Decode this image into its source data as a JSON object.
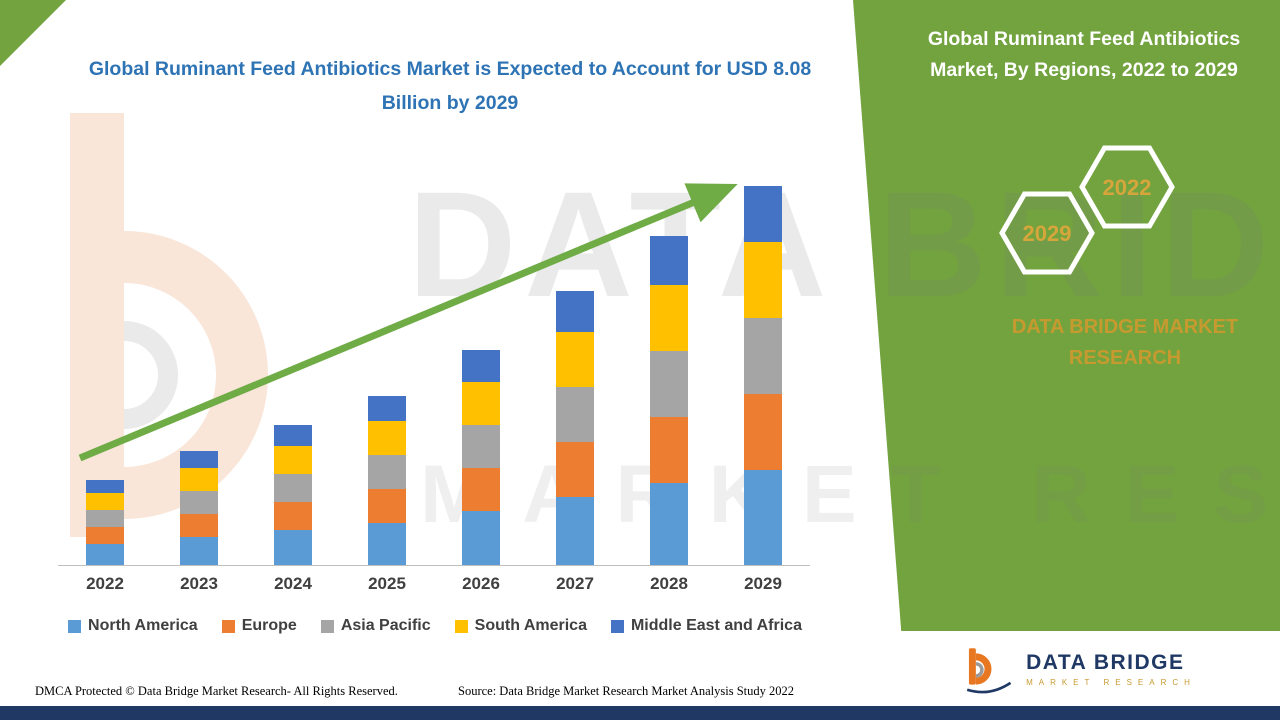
{
  "header": {
    "main_title": "Global Ruminant Feed Antibiotics Market is Expected to Account for USD 8.08 Billion by 2029",
    "panel_title": "Global Ruminant Feed Antibiotics Market, By Regions, 2022 to 2029"
  },
  "panel": {
    "hexagons": [
      "2029",
      "2022"
    ],
    "brand_text": "DATA BRIDGE MARKET RESEARCH",
    "green_color": "#72A33F",
    "gold_color": "#C79A2F"
  },
  "watermark": {
    "line1": "DATA BRIDGE",
    "line2": "MARKET RESEARCH"
  },
  "footer": {
    "dmca": "DMCA Protected © Data Bridge Market Research- All Rights Reserved.",
    "source": "Source: Data Bridge Market Research Market Analysis Study 2022",
    "logo_title": "DATA BRIDGE",
    "logo_subtitle": "MARKET RESEARCH"
  },
  "chart_data": {
    "type": "bar",
    "stacked": true,
    "title": "Global Ruminant Feed Antibiotics Market, By Regions, 2022 to 2029",
    "unit": "USD Billion",
    "categories": [
      "2022",
      "2023",
      "2024",
      "2025",
      "2026",
      "2027",
      "2028",
      "2029"
    ],
    "series": [
      {
        "name": "North America",
        "color": "#5B9BD5",
        "values": [
          0.45,
          0.6,
          0.75,
          0.9,
          1.15,
          1.45,
          1.75,
          2.02
        ]
      },
      {
        "name": "Europe",
        "color": "#ED7D31",
        "values": [
          0.36,
          0.48,
          0.6,
          0.72,
          0.92,
          1.16,
          1.4,
          1.62
        ]
      },
      {
        "name": "Asia Pacific",
        "color": "#A5A5A5",
        "values": [
          0.36,
          0.48,
          0.6,
          0.72,
          0.92,
          1.16,
          1.4,
          1.62
        ]
      },
      {
        "name": "South America",
        "color": "#FFC000",
        "values": [
          0.36,
          0.48,
          0.6,
          0.72,
          0.92,
          1.16,
          1.4,
          1.62
        ]
      },
      {
        "name": "Middle East and Africa",
        "color": "#4472C4",
        "values": [
          0.27,
          0.36,
          0.45,
          0.54,
          0.69,
          0.87,
          1.05,
          1.2
        ]
      }
    ],
    "totals": [
      1.8,
      2.4,
      3.0,
      3.6,
      4.6,
      5.8,
      7.0,
      8.08
    ],
    "ylim": [
      0,
      8.5
    ],
    "grid": false,
    "legend_position": "bottom",
    "trend_arrow": true
  }
}
